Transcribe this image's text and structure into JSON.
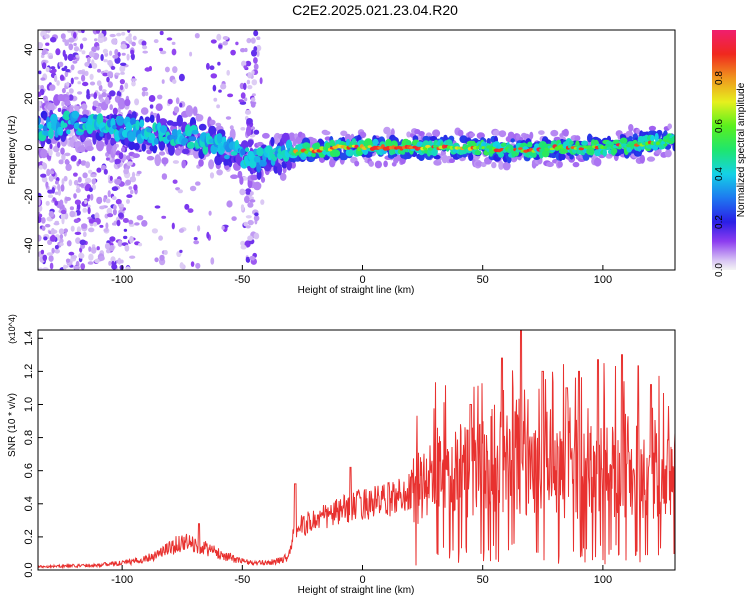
{
  "page": {
    "title": "C2E2.2025.021.23.04.R20"
  },
  "chart_data": [
    {
      "type": "heatmap",
      "xlabel": "Height of straight line (km)",
      "ylabel": "Frequency (Hz)",
      "xlim": [
        -135,
        130
      ],
      "ylim": [
        -50,
        48
      ],
      "xticks": [
        -100,
        -50,
        0,
        50,
        100
      ],
      "yticks": [
        -40,
        -20,
        0,
        20,
        40
      ],
      "colorbar": {
        "label": "Normalized spectral amplitude",
        "range": [
          0,
          1
        ],
        "ticks": [
          "0.0",
          "0.2",
          "0.4",
          "0.6",
          "0.8"
        ],
        "colormap": "rainbow"
      },
      "ridge": [
        [
          -135,
          8
        ],
        [
          -120,
          10
        ],
        [
          -110,
          9
        ],
        [
          -100,
          8
        ],
        [
          -90,
          6
        ],
        [
          -80,
          5
        ],
        [
          -70,
          4
        ],
        [
          -60,
          1
        ],
        [
          -50,
          -3
        ],
        [
          -42,
          -5
        ],
        [
          -35,
          -3
        ],
        [
          -28,
          -2
        ],
        [
          -20,
          -1
        ],
        [
          -10,
          0
        ],
        [
          0,
          0
        ],
        [
          10,
          0
        ],
        [
          20,
          0
        ],
        [
          30,
          0
        ],
        [
          40,
          0
        ],
        [
          50,
          0
        ],
        [
          60,
          -1
        ],
        [
          70,
          -1
        ],
        [
          80,
          0
        ],
        [
          90,
          0
        ],
        [
          100,
          0
        ],
        [
          110,
          1
        ],
        [
          120,
          2
        ],
        [
          130,
          3
        ]
      ]
    },
    {
      "type": "line",
      "xlabel": "Height of straight line (km)",
      "ylabel": "SNR (10 * v/v)",
      "multiplier_label": "(x10^4)",
      "xlim": [
        -135,
        130
      ],
      "ylim": [
        0,
        1.45
      ],
      "xticks": [
        -100,
        -50,
        0,
        50,
        100
      ],
      "yticks": [
        "0.0",
        "0.2",
        "0.4",
        "0.6",
        "0.8",
        "1.0",
        "1.2",
        "1.4"
      ],
      "series": [
        {
          "color": "#e8312f",
          "envelope": [
            [
              -135,
              0.02
            ],
            [
              -110,
              0.03
            ],
            [
              -95,
              0.05
            ],
            [
              -88,
              0.08
            ],
            [
              -82,
              0.12
            ],
            [
              -75,
              0.17
            ],
            [
              -68,
              0.15
            ],
            [
              -60,
              0.1
            ],
            [
              -52,
              0.06
            ],
            [
              -45,
              0.04
            ],
            [
              -36,
              0.05
            ],
            [
              -31,
              0.08
            ],
            [
              -28,
              0.25
            ],
            [
              -20,
              0.3
            ],
            [
              -10,
              0.35
            ],
            [
              0,
              0.4
            ],
            [
              10,
              0.42
            ],
            [
              20,
              0.48
            ],
            [
              30,
              0.55
            ],
            [
              40,
              0.58
            ],
            [
              50,
              0.62
            ],
            [
              60,
              0.66
            ],
            [
              70,
              0.62
            ],
            [
              80,
              0.6
            ],
            [
              90,
              0.58
            ],
            [
              100,
              0.6
            ],
            [
              110,
              0.6
            ],
            [
              120,
              0.58
            ],
            [
              130,
              0.55
            ]
          ],
          "peaks": [
            [
              66,
              1.45
            ],
            [
              58,
              1.28
            ],
            [
              75,
              1.2
            ],
            [
              90,
              1.2
            ],
            [
              98,
              1.27
            ],
            [
              108,
              1.3
            ],
            [
              45,
              1.0
            ],
            [
              85,
              1.1
            ],
            [
              120,
              1.12
            ],
            [
              -28,
              0.52
            ],
            [
              -5,
              0.62
            ],
            [
              -68,
              0.28
            ]
          ]
        }
      ]
    }
  ]
}
